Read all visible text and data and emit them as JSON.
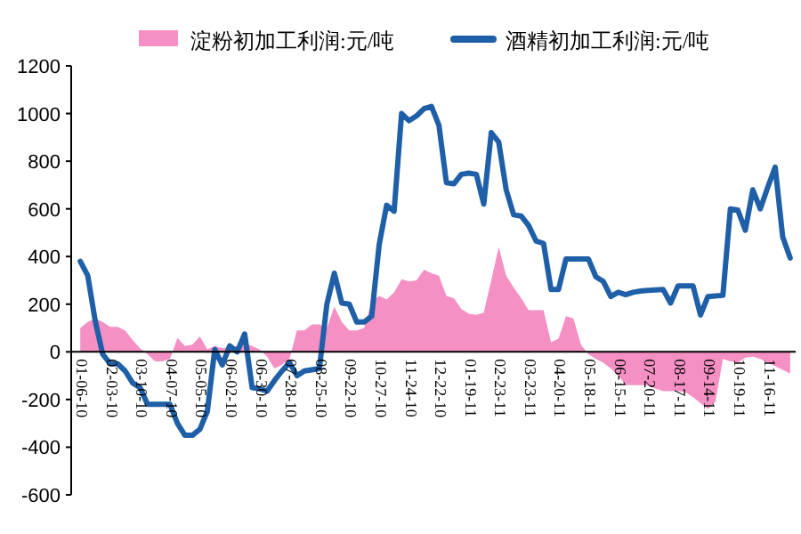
{
  "chart_data": {
    "type": "line",
    "categories": [
      "01-06-10",
      null,
      null,
      null,
      "02-03-10",
      null,
      null,
      null,
      "03-10-10",
      null,
      null,
      null,
      "04-07-10",
      null,
      null,
      null,
      "05-05-10",
      null,
      null,
      null,
      "06-02-10",
      null,
      null,
      null,
      "06-30-10",
      null,
      null,
      null,
      "07-28-10",
      null,
      null,
      null,
      "08-25-10",
      null,
      null,
      null,
      "09-22-10",
      null,
      null,
      null,
      "10-27-10",
      null,
      null,
      null,
      "11-24-10",
      null,
      null,
      null,
      "12-22-10",
      null,
      null,
      null,
      "01-19-11",
      null,
      null,
      null,
      "02-23-11",
      null,
      null,
      null,
      "03-23-11",
      null,
      null,
      null,
      "04-20-11",
      null,
      null,
      null,
      "05-18-11",
      null,
      null,
      null,
      "06-15-11",
      null,
      null,
      null,
      "07-20-11",
      null,
      null,
      null,
      "08-17-11",
      null,
      null,
      null,
      "09-14-11",
      null,
      null,
      null,
      "10-19-11",
      null,
      null,
      null,
      "11-16-11",
      null,
      null,
      null
    ],
    "series": [
      {
        "name": "淀粉初加工利润:元/吨",
        "type": "area",
        "color": "#f590c4",
        "values": [
          100,
          125,
          140,
          125,
          105,
          105,
          90,
          50,
          15,
          -10,
          -40,
          -40,
          -30,
          58,
          25,
          30,
          65,
          10,
          25,
          15,
          20,
          25,
          35,
          25,
          10,
          -20,
          -70,
          -55,
          -30,
          90,
          90,
          115,
          115,
          100,
          190,
          125,
          90,
          90,
          100,
          210,
          235,
          220,
          250,
          305,
          295,
          300,
          345,
          330,
          320,
          235,
          225,
          180,
          160,
          155,
          165,
          300,
          440,
          320,
          270,
          225,
          175,
          175,
          175,
          40,
          55,
          150,
          140,
          30,
          -10,
          -30,
          -45,
          -70,
          -100,
          -140,
          -140,
          -140,
          -140,
          -155,
          -165,
          -165,
          -165,
          -170,
          -190,
          -215,
          -240,
          -210,
          -30,
          -40,
          -45,
          -25,
          -20,
          -30,
          -45,
          -60,
          -75,
          -90
        ]
      },
      {
        "name": "酒精初加工利润:元/吨",
        "color": "#1f5fa8",
        "values": [
          380,
          320,
          130,
          -10,
          -50,
          -50,
          -80,
          -130,
          -150,
          -220,
          -220,
          -220,
          -220,
          -300,
          -350,
          -350,
          -325,
          -250,
          10,
          -55,
          25,
          0,
          75,
          -150,
          -155,
          -165,
          -120,
          -80,
          -45,
          -100,
          -80,
          -75,
          -70,
          200,
          330,
          205,
          200,
          125,
          125,
          150,
          450,
          615,
          590,
          1000,
          970,
          990,
          1020,
          1030,
          950,
          710,
          705,
          745,
          750,
          745,
          620,
          920,
          880,
          680,
          575,
          570,
          530,
          465,
          455,
          262,
          262,
          390,
          390,
          390,
          390,
          315,
          295,
          232,
          250,
          240,
          250,
          255,
          258,
          260,
          262,
          205,
          277,
          277,
          277,
          155,
          232,
          235,
          237,
          600,
          595,
          510,
          680,
          600,
          690,
          775,
          483,
          394
        ]
      }
    ],
    "ylim": [
      -600,
      1200
    ],
    "yticks": [
      -600,
      -400,
      -200,
      0,
      200,
      400,
      600,
      800,
      1000,
      1200
    ],
    "legend": "top"
  }
}
